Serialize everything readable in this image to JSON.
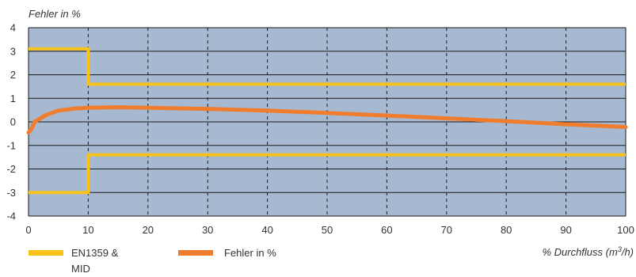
{
  "chart_data": {
    "type": "line",
    "ylabel": "Fehler in %",
    "xlabel": "% Durchfluss (m3/h)",
    "xlabel_main": "% Durchfluss (m",
    "xlabel_sup": "3",
    "xlabel_tail": "/h)",
    "xlim": [
      0,
      100
    ],
    "ylim": [
      -4,
      4
    ],
    "x_ticks": [
      0,
      10,
      20,
      30,
      40,
      50,
      60,
      70,
      80,
      90,
      100
    ],
    "y_ticks": [
      4,
      3,
      2,
      1,
      0,
      -1,
      -2,
      -3,
      -4
    ],
    "grid": true,
    "plot_background": "#a7b8d1",
    "series": [
      {
        "name": "EN1359 & MID",
        "legend_lines": [
          "EN1359 &",
          "MID"
        ],
        "color": "#f7c21a",
        "step_lines": [
          [
            [
              0,
              3.1
            ],
            [
              10,
              3.1
            ],
            [
              10,
              1.6
            ],
            [
              100,
              1.6
            ]
          ],
          [
            [
              0,
              -3.0
            ],
            [
              10,
              -3.0
            ],
            [
              10,
              -1.4
            ],
            [
              100,
              -1.4
            ]
          ]
        ]
      },
      {
        "name": "Fehler in %",
        "color": "#ef7d2d",
        "points": [
          [
            0,
            -0.45
          ],
          [
            0.5,
            -0.3
          ],
          [
            1,
            0.0
          ],
          [
            2,
            0.15
          ],
          [
            3,
            0.3
          ],
          [
            5,
            0.48
          ],
          [
            8,
            0.57
          ],
          [
            10,
            0.6
          ],
          [
            15,
            0.62
          ],
          [
            20,
            0.6
          ],
          [
            30,
            0.55
          ],
          [
            40,
            0.48
          ],
          [
            50,
            0.38
          ],
          [
            60,
            0.27
          ],
          [
            70,
            0.15
          ],
          [
            80,
            0.03
          ],
          [
            90,
            -0.1
          ],
          [
            100,
            -0.22
          ]
        ]
      }
    ]
  }
}
